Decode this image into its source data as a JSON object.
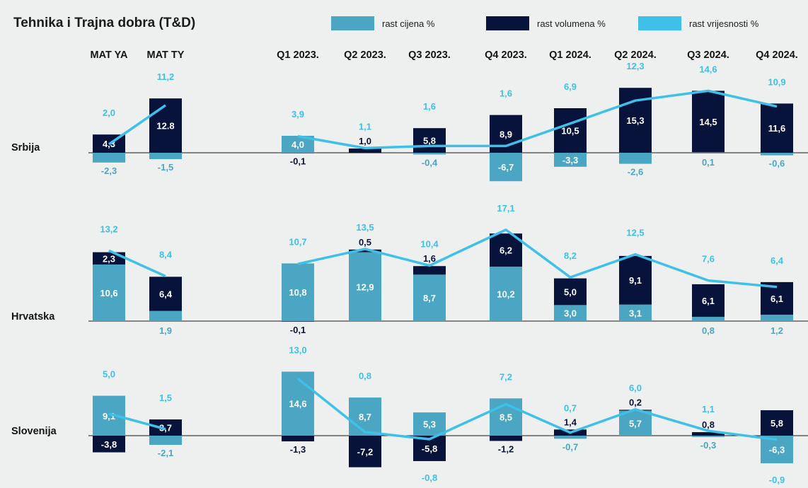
{
  "chart_data": {
    "type": "bar",
    "title": "Tehnika i Trajna dobra (T&D)",
    "legend": [
      {
        "name": "rast cijena %",
        "color": "#4aa6c3",
        "key": "price"
      },
      {
        "name": "rast volumena %",
        "color": "#08133c",
        "key": "volume"
      },
      {
        "name": "rast vrijesnosti %",
        "color": "#3ec0e8",
        "key": "value"
      }
    ],
    "legend_position": "top-right",
    "categories": [
      "MAT YA",
      "MAT TY",
      "Q1 2023.",
      "Q2 2023.",
      "Q3 2023.",
      "Q4 2023.",
      "Q1 2024.",
      "Q2 2024.",
      "Q3 2024.",
      "Q4 2024."
    ],
    "panels": [
      {
        "name": "Srbija",
        "price": [
          "-2,3",
          "-1,5",
          "4,0",
          "",
          "-0,4",
          "-6,7",
          "-3,3",
          "-2,6",
          "0,1",
          "-0,6"
        ],
        "volume": [
          "4,3",
          "12.8",
          "-0,1",
          "1,0",
          "5,8",
          "8,9",
          "10,5",
          "15,3",
          "14,5",
          "11,6"
        ],
        "value": [
          "2,0",
          "11,2",
          "3,9",
          "1,1",
          "1,6",
          "1,6",
          "6,9",
          "12,3",
          "14,6",
          "10,9"
        ]
      },
      {
        "name": "Hrvatska",
        "price": [
          "10,6",
          "1,9",
          "10,8",
          "12,9",
          "8,7",
          "10,2",
          "3,0",
          "3,1",
          "0,8",
          "1,2"
        ],
        "volume": [
          "2,3",
          "6,4",
          "-0,1",
          "0,5",
          "1,6",
          "6,2",
          "5,0",
          "9,1",
          "6,1",
          "6,1"
        ],
        "value": [
          "13,2",
          "8,4",
          "10,7",
          "13,5",
          "10,4",
          "17,1",
          "8,2",
          "12,5",
          "7,6",
          "6,4"
        ]
      },
      {
        "name": "Slovenija",
        "price": [
          "9,1",
          "-2,1",
          "14,6",
          "8,7",
          "5,3",
          "8,5",
          "-0,7",
          "5,7",
          "-0,3",
          "-6,3"
        ],
        "volume": [
          "-3,8",
          "3,7",
          "-1,3",
          "-7,2",
          "-5,8",
          "-1,2",
          "1,4",
          "0,2",
          "0,8",
          "5,8"
        ],
        "value": [
          "5,0",
          "1,5",
          "13,0",
          "0,8",
          "-0,8",
          "7,2",
          "0,7",
          "6,0",
          "1,1",
          "-0,9"
        ]
      }
    ]
  }
}
